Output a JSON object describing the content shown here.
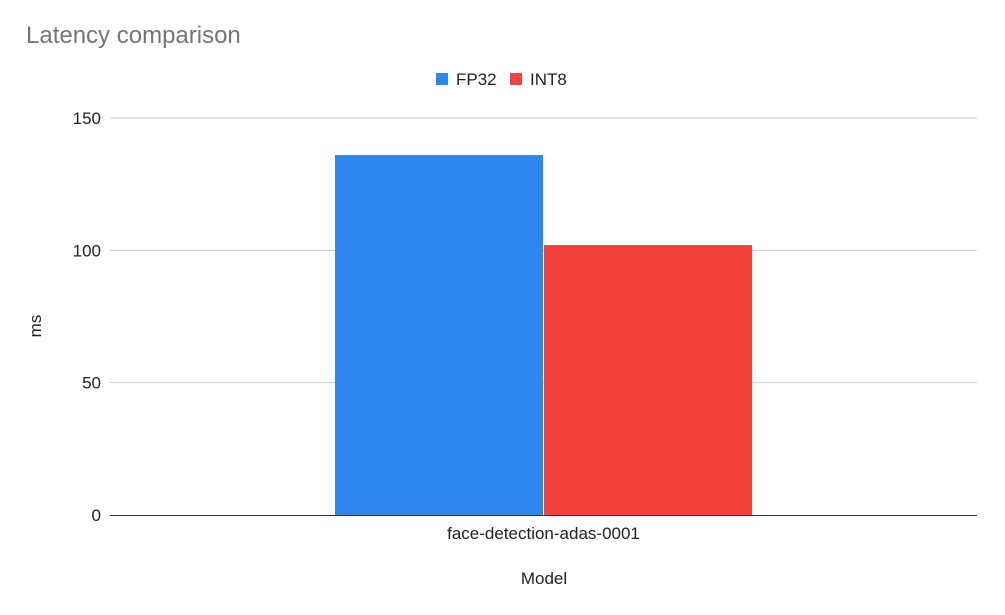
{
  "chart_data": {
    "type": "bar",
    "title": "Latency comparison",
    "categories": [
      "face-detection-adas-0001"
    ],
    "series": [
      {
        "name": "FP32",
        "values": [
          136
        ],
        "color": "#2e86ef"
      },
      {
        "name": "INT8",
        "values": [
          102
        ],
        "color": "#f4433c"
      }
    ],
    "xlabel": "Model",
    "ylabel": "ms",
    "ylim": [
      0,
      150
    ],
    "yticks": [
      {
        "value": 0,
        "label": "0"
      },
      {
        "value": 50,
        "label": "50"
      },
      {
        "value": 100,
        "label": "100"
      },
      {
        "value": 150,
        "label": "150"
      }
    ],
    "grid": true,
    "legend_position": "top"
  }
}
